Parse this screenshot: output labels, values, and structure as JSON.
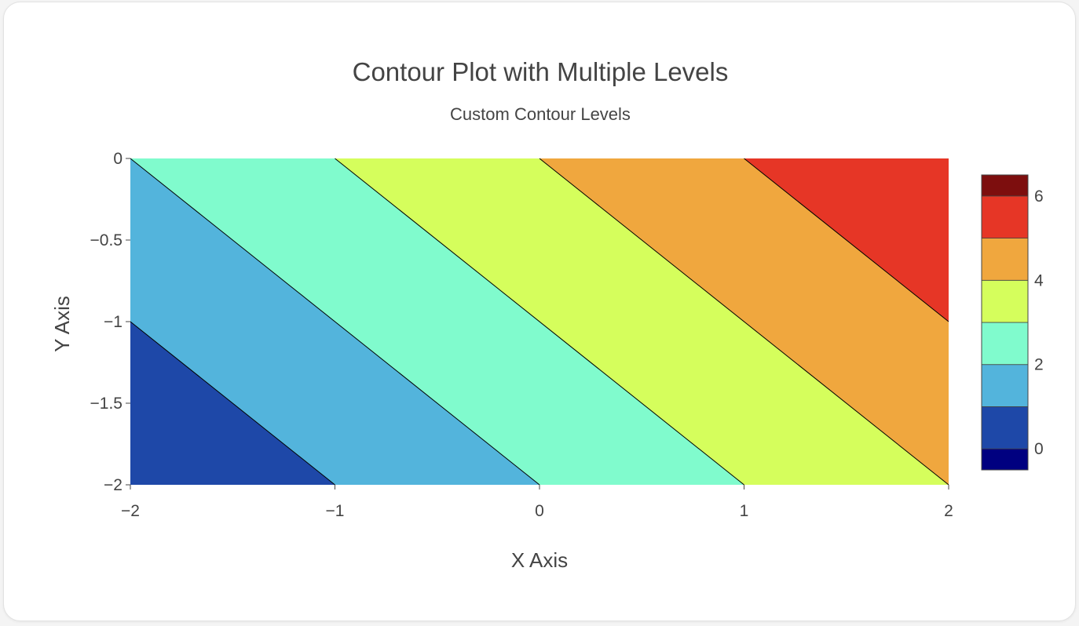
{
  "chart_data": {
    "type": "contour",
    "title": "Contour Plot with Multiple Levels",
    "subtitle": "Custom Contour Levels",
    "xlabel": "X Axis",
    "ylabel": "Y Axis",
    "xlim": [
      -2,
      2
    ],
    "ylim": [
      -2,
      0
    ],
    "x_ticks": [
      -2,
      -1,
      0,
      1,
      2
    ],
    "x_tick_labels": [
      "−2",
      "−1",
      "0",
      "1",
      "2"
    ],
    "y_ticks": [
      0,
      -0.5,
      -1,
      -1.5,
      -2
    ],
    "y_tick_labels": [
      "0",
      "−0.5",
      "−1",
      "−1.5",
      "−2"
    ],
    "z_formula": "x + y + 4",
    "contours": {
      "start": 0,
      "end": 6,
      "size": 1
    },
    "level_colors": [
      "#000080",
      "#1e48a8",
      "#53b4dc",
      "#80fbcd",
      "#d5fe5c",
      "#f0a73e",
      "#e63626",
      "#7d0e0e"
    ],
    "colorbar": {
      "range": [
        -0.5,
        6.5
      ],
      "ticks": [
        0,
        2,
        4,
        6
      ],
      "tick_labels": [
        "0",
        "2",
        "4",
        "6"
      ]
    }
  }
}
